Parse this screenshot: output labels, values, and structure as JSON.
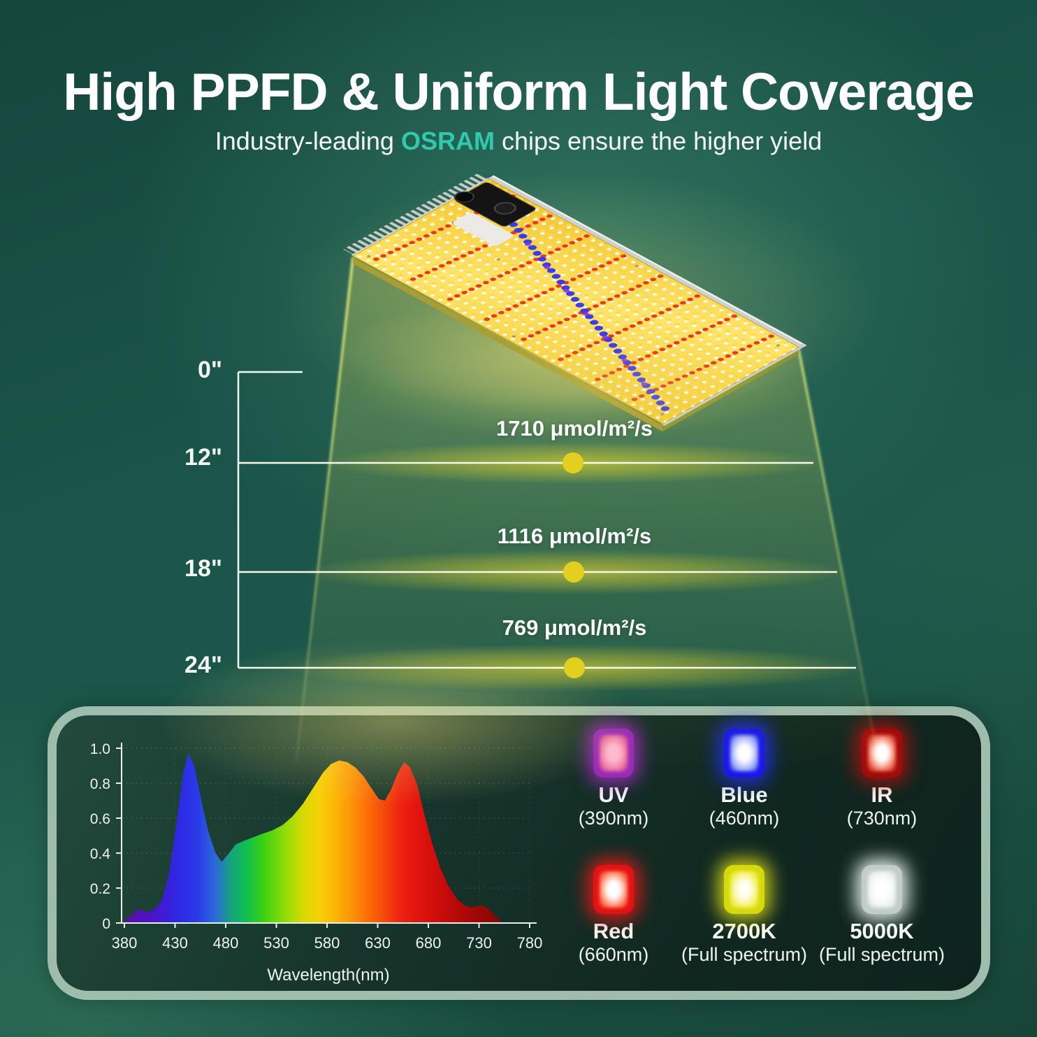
{
  "header": {
    "title": "High PPFD & Uniform Light Coverage",
    "subtitle_prefix": "Industry-leading ",
    "subtitle_brand": "OSRAM",
    "subtitle_suffix": " chips ensure the higher yield",
    "brand_color": "#30c9ad"
  },
  "ppfd": {
    "ruler_labels": [
      "0\"",
      "12\"",
      "18\"",
      "24\""
    ],
    "measurements": [
      {
        "distance": "12\"",
        "value": "1710 μmol/m²/s"
      },
      {
        "distance": "18\"",
        "value": "1116 μmol/m²/s"
      },
      {
        "distance": "24\"",
        "value": "769 μmol/m²/s"
      }
    ],
    "dot_color": "#e3cf1f",
    "line_color": "#f6f8ea"
  },
  "chart_data": {
    "type": "area",
    "title": "",
    "xlabel": "Wavelength(nm)",
    "ylabel": "",
    "xlim": [
      380,
      780
    ],
    "ylim": [
      0,
      1.0
    ],
    "xticks": [
      380,
      430,
      480,
      530,
      580,
      630,
      680,
      730,
      780
    ],
    "yticks": [
      0,
      0.2,
      0.4,
      0.6,
      0.8,
      1.0
    ],
    "x": [
      380,
      388,
      393,
      398,
      404,
      410,
      417,
      424,
      431,
      438,
      443,
      449,
      456,
      463,
      470,
      476,
      482,
      490,
      498,
      507,
      516,
      526,
      536,
      546,
      556,
      566,
      576,
      584,
      592,
      600,
      608,
      616,
      624,
      631,
      637,
      643,
      650,
      656,
      662,
      669,
      676,
      684,
      692,
      700,
      708,
      716,
      722,
      728,
      734,
      740,
      746,
      752
    ],
    "y": [
      0.01,
      0.05,
      0.08,
      0.07,
      0.06,
      0.08,
      0.13,
      0.28,
      0.55,
      0.85,
      0.97,
      0.9,
      0.7,
      0.52,
      0.4,
      0.35,
      0.39,
      0.45,
      0.47,
      0.49,
      0.51,
      0.53,
      0.56,
      0.61,
      0.68,
      0.77,
      0.86,
      0.91,
      0.93,
      0.92,
      0.89,
      0.84,
      0.77,
      0.71,
      0.7,
      0.76,
      0.86,
      0.92,
      0.89,
      0.79,
      0.62,
      0.45,
      0.31,
      0.21,
      0.14,
      0.1,
      0.09,
      0.095,
      0.1,
      0.08,
      0.04,
      0.01
    ],
    "gradient": [
      [
        380,
        "#5b0f9e"
      ],
      [
        408,
        "#4a14c9"
      ],
      [
        432,
        "#2f27e4"
      ],
      [
        452,
        "#2b3ae8"
      ],
      [
        470,
        "#2b6ad8"
      ],
      [
        485,
        "#16a37e"
      ],
      [
        500,
        "#0fbf4f"
      ],
      [
        518,
        "#3fd012"
      ],
      [
        538,
        "#8edc06"
      ],
      [
        556,
        "#d6da04"
      ],
      [
        572,
        "#f6d105"
      ],
      [
        588,
        "#fcb606"
      ],
      [
        604,
        "#fc9406"
      ],
      [
        620,
        "#fb6e07"
      ],
      [
        636,
        "#f64a0c"
      ],
      [
        652,
        "#ee2410"
      ],
      [
        668,
        "#e4140e"
      ],
      [
        690,
        "#cc0d0b"
      ],
      [
        712,
        "#b00808"
      ],
      [
        735,
        "#960707"
      ],
      [
        760,
        "#7c0505"
      ],
      [
        780,
        "#700404"
      ]
    ],
    "grid": "dotted",
    "legend": "none"
  },
  "led_types": [
    {
      "name": "UV",
      "detail": "(390nm)",
      "border": "#9a2bb5",
      "mid": "#ee6f9c",
      "center": "#ffb9d0",
      "glow": "rgba(170,45,200,0.85)"
    },
    {
      "name": "Blue",
      "detail": "(460nm)",
      "border": "#1b17e8",
      "mid": "#8fa0f6",
      "center": "#ffffff",
      "glow": "rgba(35,45,235,0.90)"
    },
    {
      "name": "IR",
      "detail": "(730nm)",
      "border": "#a30b0b",
      "mid": "#f0654a",
      "center": "#ffffff",
      "glow": "rgba(185,15,10,0.85)"
    },
    {
      "name": "Red",
      "detail": "(660nm)",
      "border": "#e31313",
      "mid": "#ff7a55",
      "center": "#ffffff",
      "glow": "rgba(235,25,20,0.90)"
    },
    {
      "name": "2700K",
      "detail": "(Full spectrum)",
      "border": "#d6d90a",
      "mid": "#f4f05e",
      "center": "#fffef0",
      "glow": "rgba(222,224,25,0.90)"
    },
    {
      "name": "5000K",
      "detail": "(Full spectrum)",
      "border": "#c3cdc7",
      "mid": "#eef3ef",
      "center": "#ffffff",
      "glow": "rgba(240,250,245,0.95)"
    }
  ],
  "colors": {
    "background_accent": "#1d574a",
    "beam": "#d8da5a",
    "panel_border": "#a7c4b4",
    "board_yellow": "#f6cd3a"
  }
}
